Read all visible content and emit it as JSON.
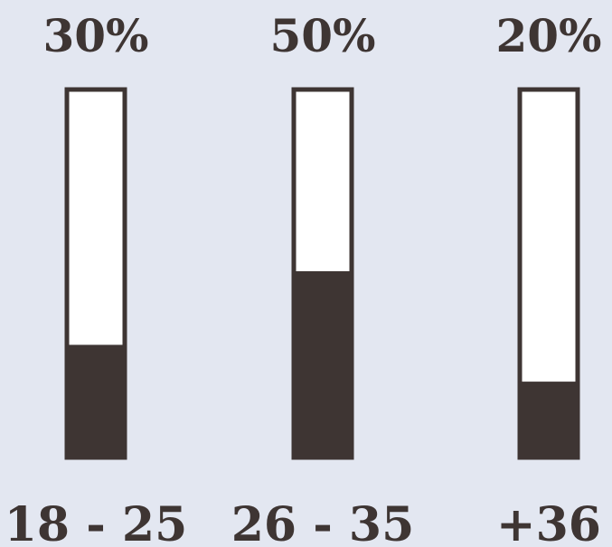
{
  "chart_data": {
    "type": "bar",
    "categories": [
      "18 - 25",
      "26 - 35",
      "+36"
    ],
    "values": [
      30,
      50,
      20
    ],
    "value_labels": [
      "30%",
      "50%",
      "20%"
    ],
    "ylim": [
      0,
      100
    ],
    "grid": false,
    "legend": "none"
  },
  "colors": {
    "background": "#e3e7f1",
    "bar_fill": "#3e3533",
    "bar_empty": "#ffffff",
    "bar_outline": "#3e3533",
    "text": "#3e3533"
  }
}
